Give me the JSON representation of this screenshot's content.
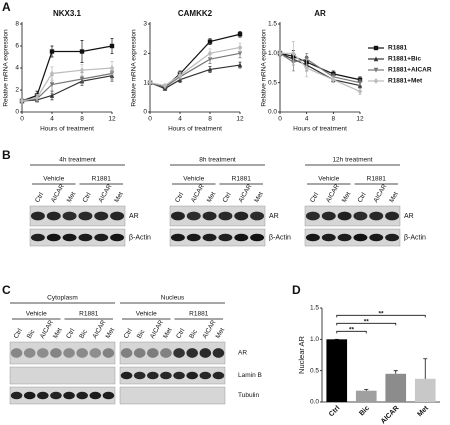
{
  "panel_labels": [
    "A",
    "B",
    "C",
    "D"
  ],
  "chart_data": [
    {
      "type": "line",
      "title": "NKX3.1",
      "ylabel": "Relative mRNA expression",
      "xlabel": "Hours of treatment",
      "x": [
        0,
        2,
        4,
        8,
        12
      ],
      "xlim": [
        0,
        12
      ],
      "xticks": [
        0,
        4,
        8,
        12
      ],
      "ylim": [
        0,
        8
      ],
      "yticks": [
        0,
        2,
        4,
        6,
        8
      ],
      "series": [
        {
          "name": "R1881",
          "color": "#111111",
          "marker": "square",
          "values": [
            1,
            1.5,
            5.5,
            5.5,
            6
          ],
          "errors": [
            0.1,
            0.4,
            0.5,
            1.0,
            0.7
          ]
        },
        {
          "name": "R1881+Bic",
          "color": "#333333",
          "marker": "triangle",
          "values": [
            1,
            1.1,
            1.5,
            2.8,
            3.3
          ],
          "errors": [
            0.1,
            0.2,
            0.4,
            0.4,
            0.5
          ]
        },
        {
          "name": "R1881+AICAR",
          "color": "#777777",
          "marker": "triangle-down",
          "values": [
            1,
            1.2,
            2.5,
            3.0,
            3.5
          ],
          "errors": [
            0.1,
            0.3,
            0.8,
            0.6,
            0.5
          ]
        },
        {
          "name": "R1881+Met",
          "color": "#bbbbbb",
          "marker": "diamond",
          "values": [
            1,
            1.3,
            3.5,
            3.8,
            4
          ],
          "errors": [
            0.1,
            0.3,
            0.6,
            0.5,
            0.6
          ]
        }
      ]
    },
    {
      "type": "line",
      "title": "CAMKK2",
      "ylabel": "Relative mRNA expression",
      "xlabel": "Hours of treatment",
      "x": [
        0,
        2,
        4,
        8,
        12
      ],
      "xlim": [
        0,
        12
      ],
      "xticks": [
        0,
        4,
        8,
        12
      ],
      "ylim": [
        0,
        3
      ],
      "yticks": [
        0,
        1,
        2,
        3
      ],
      "series": [
        {
          "color": "#111111",
          "marker": "square",
          "values": [
            1,
            0.85,
            1.3,
            2.4,
            2.65
          ],
          "errors": [
            0.05,
            0.05,
            0.1,
            0.1,
            0.1
          ]
        },
        {
          "color": "#333333",
          "marker": "triangle",
          "values": [
            1,
            0.8,
            1.1,
            1.45,
            1.6
          ],
          "errors": [
            0.05,
            0.05,
            0.1,
            0.1,
            0.1
          ]
        },
        {
          "color": "#777777",
          "marker": "triangle-down",
          "values": [
            1,
            0.85,
            1.2,
            1.8,
            2.0
          ],
          "errors": [
            0.05,
            0.05,
            0.1,
            0.15,
            0.15
          ]
        },
        {
          "color": "#bbbbbb",
          "marker": "diamond",
          "values": [
            1,
            0.9,
            1.25,
            2.0,
            2.2
          ],
          "errors": [
            0.05,
            0.05,
            0.1,
            0.15,
            0.15
          ]
        }
      ]
    },
    {
      "type": "line",
      "title": "AR",
      "ylabel": "Relative mRNA expression",
      "xlabel": "Hours of treatment",
      "x": [
        0,
        2,
        4,
        8,
        12
      ],
      "xlim": [
        0,
        12
      ],
      "xticks": [
        0,
        4,
        8,
        12
      ],
      "ylim": [
        0,
        1.5
      ],
      "yticks": [
        {
          "value": 0,
          "label": "0.0"
        },
        0.5,
        {
          "value": 1,
          "label": "1.0"
        },
        1.5
      ],
      "series": [
        {
          "color": "#111111",
          "marker": "square",
          "values": [
            1,
            0.95,
            0.85,
            0.65,
            0.55
          ],
          "errors": [
            0.05,
            0.1,
            0.1,
            0.05,
            0.05
          ]
        },
        {
          "color": "#333333",
          "marker": "triangle",
          "values": [
            1,
            0.9,
            0.8,
            0.55,
            0.45
          ],
          "errors": [
            0.05,
            0.1,
            0.1,
            0.05,
            0.05
          ]
        },
        {
          "color": "#777777",
          "marker": "triangle-down",
          "values": [
            1,
            0.85,
            0.9,
            0.6,
            0.5
          ],
          "errors": [
            0.05,
            0.15,
            0.1,
            0.05,
            0.05
          ]
        },
        {
          "color": "#bbbbbb",
          "marker": "diamond",
          "values": [
            1,
            1.0,
            0.75,
            0.55,
            0.35
          ],
          "errors": [
            0.05,
            0.2,
            0.15,
            0.05,
            0.05
          ]
        }
      ]
    },
    {
      "type": "bar",
      "ylabel": "Nuclear AR",
      "categories": [
        "Ctrl",
        "Bic",
        "AICAR",
        "Met"
      ],
      "values": [
        1.0,
        0.18,
        0.45,
        0.37
      ],
      "errors": [
        0,
        0.02,
        0.05,
        0.32
      ],
      "colors": [
        "#000000",
        "#a0a0a0",
        "#8c8c8c",
        "#c8c8c8"
      ],
      "ylim": [
        0,
        1.5
      ],
      "yticks": [
        {
          "value": 0,
          "label": "0.0"
        },
        0.5,
        {
          "value": 1,
          "label": "1.0"
        },
        1.5
      ],
      "significance": [
        {
          "pair": [
            "Ctrl",
            "Bic"
          ],
          "label": "**"
        },
        {
          "pair": [
            "Ctrl",
            "AICAR"
          ],
          "label": "**"
        },
        {
          "pair": [
            "Ctrl",
            "Met"
          ],
          "label": "**"
        }
      ]
    }
  ],
  "blots_b": [
    {
      "title": "4h treatment",
      "groups": [
        "Vehicle",
        "R1881"
      ],
      "lanes": [
        "Ctrl",
        "AICAR",
        "Met",
        "Ctrl",
        "AICAR",
        "Met"
      ],
      "rows": [
        "AR",
        "β-Actin"
      ]
    },
    {
      "title": "8h treatment",
      "groups": [
        "Vehicle",
        "R1881"
      ],
      "lanes": [
        "Ctrl",
        "AICAR",
        "Met",
        "Ctrl",
        "AICAR",
        "Met"
      ],
      "rows": [
        "AR",
        "β-Actin"
      ]
    },
    {
      "title": "12h treatment",
      "groups": [
        "Vehicle",
        "R1881"
      ],
      "lanes": [
        "Ctrl",
        "AICAR",
        "Met",
        "Ctrl",
        "AICAR",
        "Met"
      ],
      "rows": [
        "AR",
        "β-Actin"
      ]
    }
  ],
  "blots_c": {
    "fractions": [
      {
        "title": "Cytoplasm",
        "groups": [
          "Vehicle",
          "R1881"
        ],
        "lanes": [
          "Ctrl",
          "Bic",
          "AICAR",
          "Met",
          "Ctrl",
          "Bic",
          "AICAR",
          "Met"
        ]
      },
      {
        "title": "Nucleus",
        "groups": [
          "Vehicle",
          "R1881"
        ],
        "lanes": [
          "Ctrl",
          "Bic",
          "AICAR",
          "Met",
          "Ctrl",
          "Bic",
          "AICAR",
          "Met"
        ]
      }
    ],
    "rows": [
      "AR",
      "Lamin B",
      "Tubulin"
    ]
  }
}
